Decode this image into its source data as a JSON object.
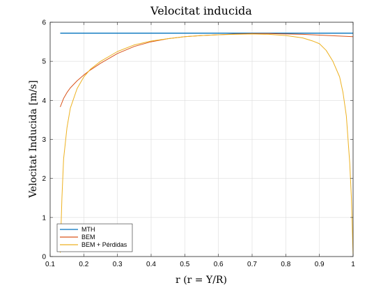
{
  "chart_data": {
    "type": "line",
    "title": "Velocitat inducida",
    "xlabel": "r (r = Y/R)",
    "ylabel": "Velocitat Inducida [m/s]",
    "xlim": [
      0.1,
      1.0
    ],
    "ylim": [
      0,
      6
    ],
    "xticks": [
      "0.1",
      "0.2",
      "0.3",
      "0.4",
      "0.5",
      "0.6",
      "0.7",
      "0.8",
      "0.9",
      "1"
    ],
    "yticks": [
      "0",
      "1",
      "2",
      "3",
      "4",
      "5",
      "6"
    ],
    "grid": true,
    "legend_position": "bottom-left",
    "series": [
      {
        "name": "MTH",
        "color": "#0072BD",
        "x": [
          0.13,
          0.3,
          0.5,
          0.7,
          0.9,
          1.0
        ],
        "y": [
          5.72,
          5.72,
          5.72,
          5.72,
          5.72,
          5.72
        ]
      },
      {
        "name": "BEM",
        "color": "#D95319",
        "x": [
          0.13,
          0.14,
          0.15,
          0.16,
          0.18,
          0.2,
          0.22,
          0.25,
          0.28,
          0.3,
          0.35,
          0.4,
          0.45,
          0.5,
          0.55,
          0.6,
          0.65,
          0.7,
          0.75,
          0.8,
          0.85,
          0.9,
          0.95,
          1.0
        ],
        "y": [
          3.83,
          4.05,
          4.2,
          4.32,
          4.5,
          4.65,
          4.78,
          4.95,
          5.1,
          5.2,
          5.38,
          5.5,
          5.58,
          5.63,
          5.66,
          5.68,
          5.7,
          5.71,
          5.71,
          5.7,
          5.69,
          5.67,
          5.65,
          5.63
        ]
      },
      {
        "name": "BEM + Pérdidas",
        "color": "#EDB120",
        "x": [
          0.13,
          0.135,
          0.14,
          0.15,
          0.16,
          0.18,
          0.2,
          0.22,
          0.25,
          0.3,
          0.35,
          0.4,
          0.45,
          0.5,
          0.55,
          0.6,
          0.65,
          0.7,
          0.75,
          0.8,
          0.85,
          0.88,
          0.9,
          0.92,
          0.94,
          0.96,
          0.97,
          0.98,
          0.99,
          0.995,
          1.0
        ],
        "y": [
          0.1,
          1.5,
          2.5,
          3.3,
          3.8,
          4.3,
          4.6,
          4.8,
          5.0,
          5.25,
          5.42,
          5.52,
          5.58,
          5.63,
          5.66,
          5.68,
          5.69,
          5.7,
          5.69,
          5.66,
          5.6,
          5.52,
          5.45,
          5.28,
          5.0,
          4.6,
          4.2,
          3.6,
          2.4,
          1.5,
          0.05
        ]
      }
    ]
  }
}
